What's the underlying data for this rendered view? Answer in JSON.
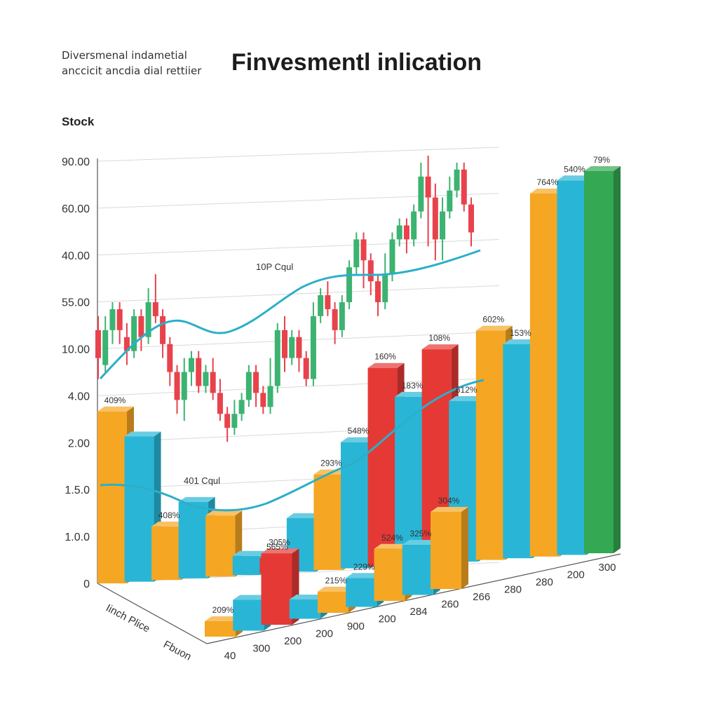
{
  "header": {
    "subtitle": "Diversmenal indametial anccicit ancdia dial rettiier",
    "title": "Finvesmentl inlication",
    "section_label": "Stock"
  },
  "chart_data": {
    "type": "bar",
    "title": "Finvesmentl inlication",
    "subtitle": "Diversmenal indametial anccicit ancdia dial rettiier",
    "y_tick_labels": [
      "90.00",
      "60.00",
      "40.00",
      "55.00",
      "10.00",
      "4.00",
      "2.00",
      "1.5.0",
      "1.0.0",
      "0"
    ],
    "x_tick_labels": [
      "40",
      "300",
      "200",
      "200",
      "900",
      "200",
      "284",
      "260",
      "266",
      "280",
      "280",
      "200",
      "300"
    ],
    "axis_labels": [
      "Iinch Plice",
      "Fbuon"
    ],
    "annotations": [
      "10P Cqul",
      "401 Cqul"
    ],
    "colors": {
      "orange": "#F5A623",
      "blue": "#29B6D6",
      "red": "#E53935",
      "green": "#34A853",
      "candle_up": "#3CB371",
      "candle_down": "#E8424C",
      "trend": "#2BAFC8"
    },
    "candles": [
      {
        "open": 24,
        "close": 20,
        "high": 26,
        "low": 17
      },
      {
        "open": 19,
        "close": 24,
        "high": 26,
        "low": 18
      },
      {
        "open": 24,
        "close": 27,
        "high": 28,
        "low": 22
      },
      {
        "open": 27,
        "close": 24,
        "high": 28,
        "low": 22
      },
      {
        "open": 23,
        "close": 21,
        "high": 25,
        "low": 19
      },
      {
        "open": 21,
        "close": 26,
        "high": 27,
        "low": 20
      },
      {
        "open": 26,
        "close": 23,
        "high": 27,
        "low": 21
      },
      {
        "open": 23,
        "close": 28,
        "high": 30,
        "low": 22
      },
      {
        "open": 28,
        "close": 26,
        "high": 32,
        "low": 25
      },
      {
        "open": 26,
        "close": 22,
        "high": 27,
        "low": 20
      },
      {
        "open": 22,
        "close": 18,
        "high": 23,
        "low": 16
      },
      {
        "open": 18,
        "close": 14,
        "high": 19,
        "low": 12
      },
      {
        "open": 14,
        "close": 18,
        "high": 20,
        "low": 11
      },
      {
        "open": 18,
        "close": 20,
        "high": 21,
        "low": 16
      },
      {
        "open": 20,
        "close": 16,
        "high": 21,
        "low": 15
      },
      {
        "open": 16,
        "close": 18,
        "high": 19,
        "low": 15
      },
      {
        "open": 18,
        "close": 15,
        "high": 20,
        "low": 14
      },
      {
        "open": 15,
        "close": 12,
        "high": 17,
        "low": 11
      },
      {
        "open": 12,
        "close": 10,
        "high": 13,
        "low": 8
      },
      {
        "open": 10,
        "close": 12,
        "high": 14,
        "low": 9
      },
      {
        "open": 12,
        "close": 14,
        "high": 15,
        "low": 11
      },
      {
        "open": 14,
        "close": 18,
        "high": 19,
        "low": 13
      },
      {
        "open": 18,
        "close": 15,
        "high": 19,
        "low": 13
      },
      {
        "open": 15,
        "close": 13,
        "high": 16,
        "low": 12
      },
      {
        "open": 13,
        "close": 16,
        "high": 20,
        "low": 12
      },
      {
        "open": 16,
        "close": 24,
        "high": 25,
        "low": 15
      },
      {
        "open": 24,
        "close": 20,
        "high": 26,
        "low": 18
      },
      {
        "open": 20,
        "close": 23,
        "high": 24,
        "low": 19
      },
      {
        "open": 23,
        "close": 20,
        "high": 24,
        "low": 18
      },
      {
        "open": 20,
        "close": 17,
        "high": 21,
        "low": 16
      },
      {
        "open": 17,
        "close": 26,
        "high": 28,
        "low": 16
      },
      {
        "open": 26,
        "close": 29,
        "high": 30,
        "low": 25
      },
      {
        "open": 29,
        "close": 27,
        "high": 31,
        "low": 26
      },
      {
        "open": 27,
        "close": 24,
        "high": 28,
        "low": 22
      },
      {
        "open": 24,
        "close": 28,
        "high": 29,
        "low": 23
      },
      {
        "open": 28,
        "close": 33,
        "high": 34,
        "low": 27
      },
      {
        "open": 33,
        "close": 37,
        "high": 38,
        "low": 32
      },
      {
        "open": 37,
        "close": 34,
        "high": 38,
        "low": 30
      },
      {
        "open": 34,
        "close": 31,
        "high": 35,
        "low": 29
      },
      {
        "open": 31,
        "close": 28,
        "high": 32,
        "low": 26
      },
      {
        "open": 28,
        "close": 32,
        "high": 35,
        "low": 27
      },
      {
        "open": 32,
        "close": 37,
        "high": 38,
        "low": 31
      },
      {
        "open": 37,
        "close": 39,
        "high": 40,
        "low": 36
      },
      {
        "open": 39,
        "close": 37,
        "high": 40,
        "low": 35
      },
      {
        "open": 37,
        "close": 41,
        "high": 42,
        "low": 36
      },
      {
        "open": 41,
        "close": 46,
        "high": 48,
        "low": 40
      },
      {
        "open": 46,
        "close": 43,
        "high": 49,
        "low": 36
      },
      {
        "open": 43,
        "close": 37,
        "high": 45,
        "low": 34
      },
      {
        "open": 37,
        "close": 41,
        "high": 43,
        "low": 34
      },
      {
        "open": 41,
        "close": 44,
        "high": 46,
        "low": 40
      },
      {
        "open": 44,
        "close": 47,
        "high": 48,
        "low": 43
      },
      {
        "open": 47,
        "close": 42,
        "high": 48,
        "low": 41
      },
      {
        "open": 42,
        "close": 38,
        "high": 43,
        "low": 36
      }
    ],
    "bar_rows": [
      {
        "name": "back",
        "bars": [
          {
            "value": 45,
            "color": "orange",
            "label": "409%"
          },
          {
            "value": 38,
            "color": "blue",
            "label": ""
          },
          {
            "value": 14,
            "color": "orange",
            "label": "408%"
          },
          {
            "value": 20,
            "color": "blue",
            "label": ""
          },
          {
            "value": 16,
            "color": "orange",
            "label": ""
          },
          {
            "value": 5,
            "color": "blue",
            "label": ""
          },
          {
            "value": 4,
            "color": "red",
            "label": "565%"
          },
          {
            "value": 14,
            "color": "blue",
            "label": ""
          },
          {
            "value": 25,
            "color": "orange",
            "label": "293%"
          },
          {
            "value": 33,
            "color": "blue",
            "label": "548%"
          },
          {
            "value": 52,
            "color": "red",
            "label": "160%"
          },
          {
            "value": 44,
            "color": "blue",
            "label": "183%"
          },
          {
            "value": 56,
            "color": "red",
            "label": "108%"
          },
          {
            "value": 42,
            "color": "blue",
            "label": "612%"
          },
          {
            "value": 60,
            "color": "orange",
            "label": "602%"
          },
          {
            "value": 56,
            "color": "blue",
            "label": "153%"
          },
          {
            "value": 95,
            "color": "orange",
            "label": "764%"
          },
          {
            "value": 98,
            "color": "blue",
            "label": "540%"
          },
          {
            "value": 100,
            "color": "green",
            "label": "79%"
          }
        ]
      },
      {
        "name": "front",
        "bars": [
          {
            "value": 8,
            "color": "orange",
            "label": "209%"
          },
          {
            "value": 16,
            "color": "blue",
            "label": ""
          },
          {
            "value": 37,
            "color": "red",
            "label": "305%"
          },
          {
            "value": 10,
            "color": "blue",
            "label": ""
          },
          {
            "value": 11,
            "color": "orange",
            "label": "215%"
          },
          {
            "value": 15,
            "color": "blue",
            "label": "229%"
          },
          {
            "value": 27,
            "color": "orange",
            "label": "524%"
          },
          {
            "value": 26,
            "color": "blue",
            "label": "325%"
          },
          {
            "value": 40,
            "color": "orange",
            "label": "304%"
          }
        ]
      }
    ]
  }
}
